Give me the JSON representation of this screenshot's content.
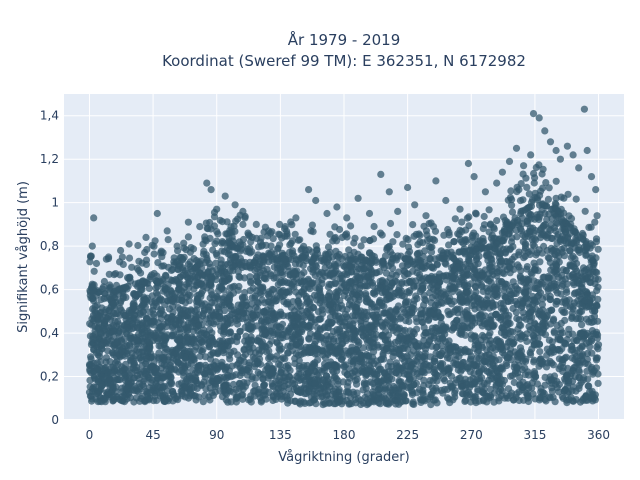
{
  "chart_data": {
    "type": "scatter",
    "title": "År 1979 - 2019",
    "subtitle": "Koordinat (Sweref 99 TM): E 362351, N 6172982",
    "xlabel": "Vågriktning (grader)",
    "ylabel": "Signifikant våghöjd (m)",
    "xlim": [
      -18,
      378
    ],
    "ylim": [
      0,
      1.5
    ],
    "x_ticks": [
      0,
      45,
      90,
      135,
      180,
      225,
      270,
      315,
      360
    ],
    "x_tick_labels": [
      "0",
      "45",
      "90",
      "135",
      "180",
      "225",
      "270",
      "315",
      "360"
    ],
    "y_ticks": [
      0,
      0.2,
      0.4,
      0.6,
      0.8,
      1.0,
      1.2,
      1.4
    ],
    "y_tick_labels": [
      "0",
      "0,2",
      "0,4",
      "0,6",
      "0,8",
      "1",
      "1,2",
      "1,4"
    ],
    "grid": true,
    "marker_color": "#34596e",
    "plot_background": "#e5ecf6",
    "envelope": {
      "x": [
        0,
        10,
        20,
        30,
        45,
        60,
        75,
        85,
        90,
        100,
        110,
        120,
        135,
        150,
        165,
        180,
        195,
        210,
        225,
        240,
        255,
        270,
        285,
        295,
        305,
        315,
        325,
        335,
        345,
        355,
        360
      ],
      "dense_top": [
        0.6,
        0.58,
        0.6,
        0.62,
        0.65,
        0.67,
        0.7,
        0.78,
        0.82,
        0.8,
        0.78,
        0.75,
        0.74,
        0.74,
        0.74,
        0.74,
        0.72,
        0.73,
        0.74,
        0.73,
        0.75,
        0.78,
        0.8,
        0.86,
        0.95,
        1.0,
        0.98,
        0.92,
        0.85,
        0.78,
        0.7
      ],
      "dense_bottom": [
        0.08,
        0.08,
        0.08,
        0.08,
        0.08,
        0.08,
        0.08,
        0.08,
        0.08,
        0.08,
        0.08,
        0.08,
        0.08,
        0.07,
        0.07,
        0.07,
        0.07,
        0.07,
        0.07,
        0.07,
        0.08,
        0.08,
        0.08,
        0.08,
        0.08,
        0.08,
        0.08,
        0.08,
        0.08,
        0.08,
        0.09
      ]
    },
    "outliers": [
      {
        "x": 3,
        "y": 0.93
      },
      {
        "x": 2,
        "y": 0.8
      },
      {
        "x": 5,
        "y": 0.72
      },
      {
        "x": 12,
        "y": 0.74
      },
      {
        "x": 22,
        "y": 0.78
      },
      {
        "x": 28,
        "y": 0.81
      },
      {
        "x": 35,
        "y": 0.73
      },
      {
        "x": 40,
        "y": 0.84
      },
      {
        "x": 48,
        "y": 0.95
      },
      {
        "x": 55,
        "y": 0.87
      },
      {
        "x": 62,
        "y": 0.8
      },
      {
        "x": 70,
        "y": 0.91
      },
      {
        "x": 78,
        "y": 0.89
      },
      {
        "x": 83,
        "y": 1.09
      },
      {
        "x": 86,
        "y": 1.06
      },
      {
        "x": 90,
        "y": 0.97
      },
      {
        "x": 96,
        "y": 1.03
      },
      {
        "x": 103,
        "y": 0.99
      },
      {
        "x": 110,
        "y": 0.93
      },
      {
        "x": 118,
        "y": 0.9
      },
      {
        "x": 128,
        "y": 0.86
      },
      {
        "x": 138,
        "y": 0.88
      },
      {
        "x": 146,
        "y": 0.93
      },
      {
        "x": 155,
        "y": 1.06
      },
      {
        "x": 160,
        "y": 1.01
      },
      {
        "x": 168,
        "y": 0.95
      },
      {
        "x": 175,
        "y": 0.98
      },
      {
        "x": 182,
        "y": 0.93
      },
      {
        "x": 190,
        "y": 1.02
      },
      {
        "x": 198,
        "y": 0.95
      },
      {
        "x": 206,
        "y": 1.13
      },
      {
        "x": 212,
        "y": 1.05
      },
      {
        "x": 218,
        "y": 0.96
      },
      {
        "x": 225,
        "y": 1.07
      },
      {
        "x": 230,
        "y": 0.99
      },
      {
        "x": 238,
        "y": 0.94
      },
      {
        "x": 245,
        "y": 1.1
      },
      {
        "x": 252,
        "y": 1.01
      },
      {
        "x": 262,
        "y": 0.97
      },
      {
        "x": 268,
        "y": 1.18
      },
      {
        "x": 272,
        "y": 1.12
      },
      {
        "x": 280,
        "y": 1.05
      },
      {
        "x": 288,
        "y": 1.09
      },
      {
        "x": 292,
        "y": 1.14
      },
      {
        "x": 297,
        "y": 1.19
      },
      {
        "x": 302,
        "y": 1.25
      },
      {
        "x": 307,
        "y": 1.17
      },
      {
        "x": 312,
        "y": 1.22
      },
      {
        "x": 314,
        "y": 1.41
      },
      {
        "x": 318,
        "y": 1.39
      },
      {
        "x": 322,
        "y": 1.33
      },
      {
        "x": 326,
        "y": 1.28
      },
      {
        "x": 330,
        "y": 1.24
      },
      {
        "x": 333,
        "y": 1.2
      },
      {
        "x": 338,
        "y": 1.26
      },
      {
        "x": 342,
        "y": 1.22
      },
      {
        "x": 346,
        "y": 1.16
      },
      {
        "x": 350,
        "y": 1.43
      },
      {
        "x": 352,
        "y": 1.24
      },
      {
        "x": 355,
        "y": 1.12
      },
      {
        "x": 358,
        "y": 1.06
      },
      {
        "x": 359,
        "y": 0.94
      }
    ]
  }
}
